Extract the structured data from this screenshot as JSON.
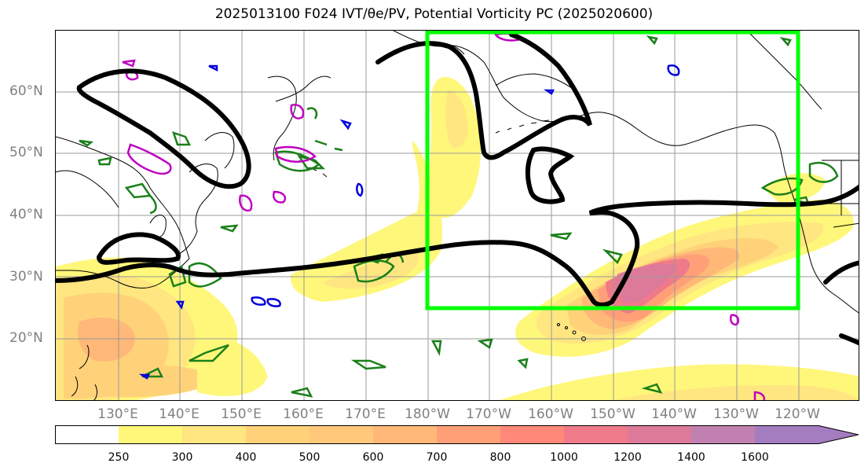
{
  "title": "2025013100 F024 IVT/θe/PV, Potential Vorticity PC (2025020600)",
  "lat_labels": [
    "60°N",
    "50°N",
    "40°N",
    "30°N",
    "20°N"
  ],
  "lon_labels": [
    "130°E",
    "140°E",
    "150°E",
    "160°E",
    "170°E",
    "180°W",
    "170°W",
    "160°W",
    "150°W",
    "140°W",
    "130°W",
    "120°W"
  ],
  "colorbar": {
    "levels": [
      "250",
      "300",
      "400",
      "500",
      "600",
      "700",
      "800",
      "1000",
      "1200",
      "1400",
      "1600"
    ],
    "colors": [
      "#ffffff",
      "#fff77a",
      "#ffe680",
      "#ffd27a",
      "#ffc87a",
      "#ffb878",
      "#ff9f78",
      "#ff8878",
      "#ee7a8a",
      "#dd7a9a",
      "#c080b0",
      "#a47cc0"
    ]
  },
  "highlight_box_color": "#00ff00"
}
